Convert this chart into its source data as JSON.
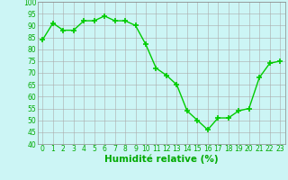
{
  "x": [
    0,
    1,
    2,
    3,
    4,
    5,
    6,
    7,
    8,
    9,
    10,
    11,
    12,
    13,
    14,
    15,
    16,
    17,
    18,
    19,
    20,
    21,
    22,
    23
  ],
  "y": [
    84,
    91,
    88,
    88,
    92,
    92,
    94,
    92,
    92,
    90,
    82,
    72,
    69,
    65,
    54,
    50,
    46,
    51,
    51,
    54,
    55,
    68,
    74,
    75
  ],
  "line_color": "#00cc00",
  "marker": "+",
  "marker_size": 4,
  "marker_linewidth": 1.2,
  "bg_color": "#ccf5f5",
  "grid_color": "#aaaaaa",
  "xlabel": "Humidité relative (%)",
  "xlabel_color": "#00aa00",
  "ylim": [
    40,
    100
  ],
  "xlim": [
    -0.5,
    23.5
  ],
  "yticks": [
    40,
    45,
    50,
    55,
    60,
    65,
    70,
    75,
    80,
    85,
    90,
    95,
    100
  ],
  "xticks": [
    0,
    1,
    2,
    3,
    4,
    5,
    6,
    7,
    8,
    9,
    10,
    11,
    12,
    13,
    14,
    15,
    16,
    17,
    18,
    19,
    20,
    21,
    22,
    23
  ],
  "tick_fontsize": 5.5,
  "xlabel_fontsize": 7.5,
  "tick_color": "#00aa00",
  "line_width": 1.0
}
